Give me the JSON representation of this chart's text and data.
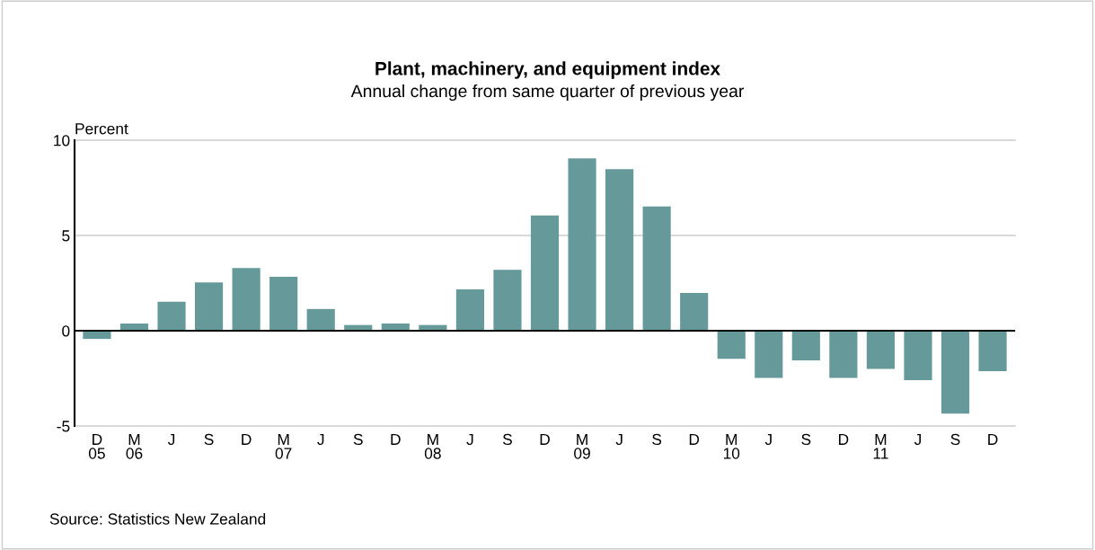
{
  "chart_data": {
    "type": "bar",
    "title": "Plant, machinery, and equipment index",
    "subtitle": "Annual change from same quarter of previous year",
    "ylabel": "Percent",
    "categories": [
      "D\n05",
      "M\n06",
      "J",
      "S",
      "D",
      "M\n07",
      "J",
      "S",
      "D",
      "M\n08",
      "J",
      "S",
      "D",
      "M\n09",
      "J",
      "S",
      "D",
      "M\n10",
      "J",
      "S",
      "D",
      "M\n11",
      "J",
      "S",
      "D"
    ],
    "values": [
      -0.43,
      0.38,
      1.52,
      2.54,
      3.29,
      2.83,
      1.14,
      0.3,
      0.38,
      0.3,
      2.17,
      3.19,
      6.05,
      9.04,
      8.48,
      6.52,
      1.98,
      -1.47,
      -2.48,
      -1.56,
      -2.48,
      -2.01,
      -2.59,
      -4.35,
      -2.12
    ],
    "color": "#669999",
    "ylim": [
      -5,
      10
    ],
    "yticks": [
      -5,
      0,
      5,
      10
    ],
    "grid": "y",
    "legend": false,
    "annotations": [
      "Source: Statistics New Zealand"
    ]
  }
}
